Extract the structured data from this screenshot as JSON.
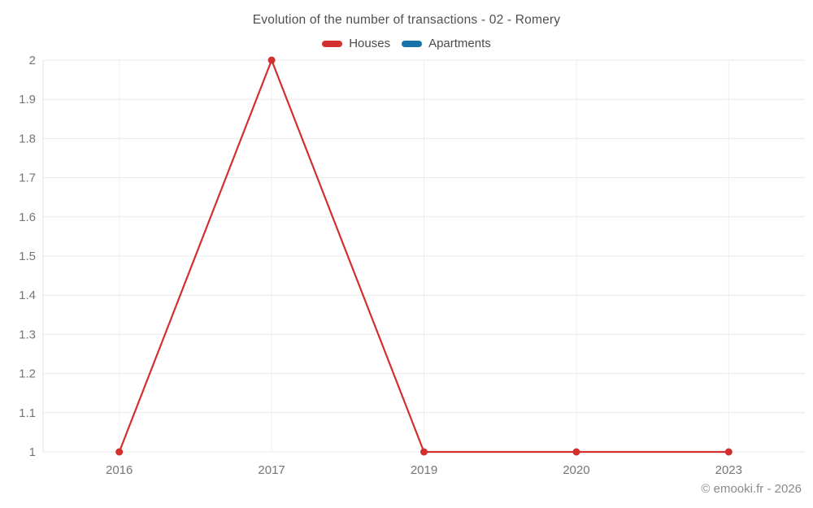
{
  "title": "Evolution of the number of transactions - 02 - Romery",
  "footer": "© emooki.fr - 2026",
  "legend": {
    "items": [
      {
        "label": "Houses",
        "color": "#d32f2f"
      },
      {
        "label": "Apartments",
        "color": "#1673a8"
      }
    ]
  },
  "colors": {
    "houses": "#d32f2f",
    "apartments": "#1673a8",
    "grid_horizontal": "#e8e8e8",
    "grid_vertical": "#efefef",
    "axis_line": "#e0e0e0",
    "tick_text": "#757575"
  },
  "chart_data": {
    "type": "line",
    "title": "Evolution of the number of transactions - 02 - Romery",
    "categories": [
      "2016",
      "2017",
      "2019",
      "2020",
      "2023"
    ],
    "series": [
      {
        "name": "Houses",
        "color": "#d32f2f",
        "values": [
          1,
          2,
          1,
          1,
          1
        ]
      },
      {
        "name": "Apartments",
        "color": "#1673a8",
        "values": []
      }
    ],
    "xlabel": "",
    "ylabel": "",
    "ylim": [
      1,
      2
    ],
    "ytick_step": 0.1,
    "yticks": [
      "1",
      "1.1",
      "1.2",
      "1.3",
      "1.4",
      "1.5",
      "1.6",
      "1.7",
      "1.8",
      "1.9",
      "2"
    ],
    "grid": true,
    "legend_position": "top"
  }
}
